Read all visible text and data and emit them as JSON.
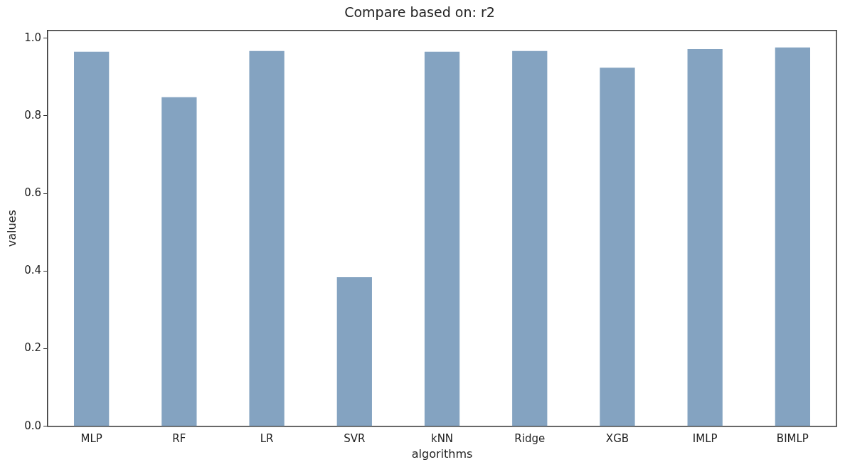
{
  "chart_data": {
    "type": "bar",
    "title": "Compare based on: r2",
    "xlabel": "algorithms",
    "ylabel": "values",
    "categories": [
      "MLP",
      "RF",
      "LR",
      "SVR",
      "kNN",
      "Ridge",
      "XGB",
      "IMLP",
      "BIMLP"
    ],
    "values": [
      0.965,
      0.848,
      0.967,
      0.384,
      0.965,
      0.967,
      0.924,
      0.972,
      0.976
    ],
    "color": "#84a3c1",
    "ylim": [
      0,
      1.02
    ],
    "yticks": [
      {
        "value": 0,
        "label": "0.0"
      },
      {
        "value": 0.2,
        "label": "0.2"
      },
      {
        "value": 0.4,
        "label": "0.4"
      },
      {
        "value": 0.6,
        "label": "0.6"
      },
      {
        "value": 0.8,
        "label": "0.8"
      },
      {
        "value": 1,
        "label": "1.0"
      }
    ],
    "grid": false,
    "legend": false
  }
}
